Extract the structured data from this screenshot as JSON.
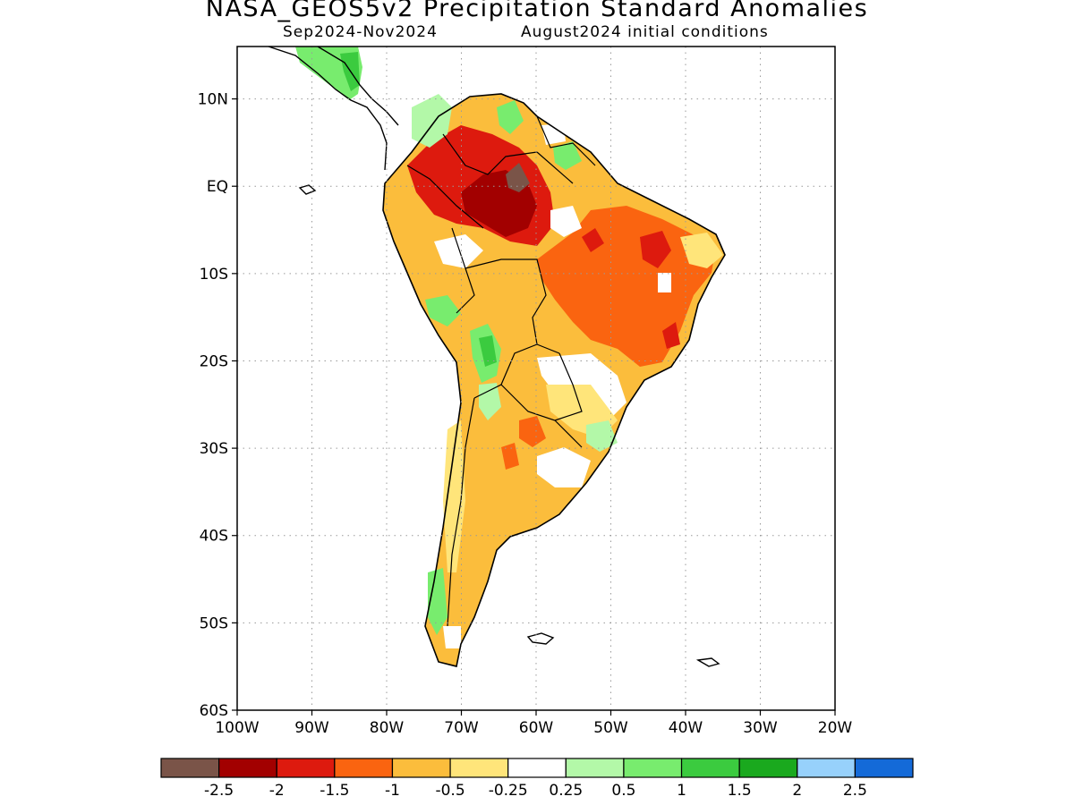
{
  "title": "NASA_GEOS5v2 Precipitation Standard Anomalies",
  "subtitle_period": "Sep2024-Nov2024",
  "subtitle_init": "August2024 initial conditions",
  "lat_labels": [
    "10N",
    "EQ",
    "10S",
    "20S",
    "30S",
    "40S",
    "50S",
    "60S"
  ],
  "lon_labels": [
    "100W",
    "90W",
    "80W",
    "70W",
    "60W",
    "50W",
    "40W",
    "30W",
    "20W"
  ],
  "map_extent": {
    "lon_min": -100,
    "lon_max": -20,
    "lat_min": -60,
    "lat_max": 16
  },
  "colorbar": {
    "colors": [
      "#7a5448",
      "#a20000",
      "#dd1a0e",
      "#fa6410",
      "#fbbd3c",
      "#ffe57a",
      "#ffffff",
      "#b3f8a8",
      "#78ec6e",
      "#3bcb3f",
      "#1aa91e",
      "#97d1fb",
      "#146ad8"
    ],
    "labels": [
      "-2.5",
      "-2",
      "-1.5",
      "-1",
      "-0.5",
      "-0.25",
      "0.25",
      "0.5",
      "1",
      "1.5",
      "2",
      "2.5"
    ]
  }
}
